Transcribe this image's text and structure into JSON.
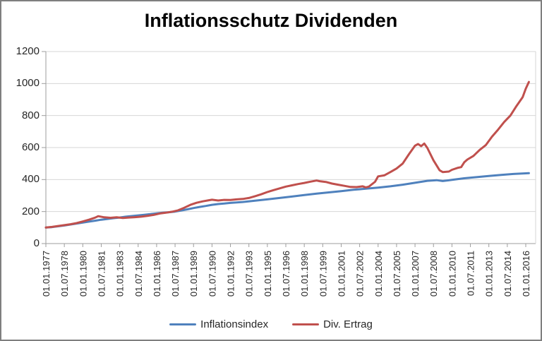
{
  "colors": {
    "background": "#FFFFFF",
    "frame_border": "#7F7F7F",
    "gridline": "#D6D6D6",
    "axis": "#9E9E9E",
    "tick_text": "#262626",
    "title_text": "#000000"
  },
  "chart_data": {
    "type": "line",
    "title": "Inflationsschutz Dividenden",
    "xlabel": "",
    "ylabel": "",
    "ylim": [
      0,
      1200
    ],
    "y_ticks": [
      0,
      200,
      400,
      600,
      800,
      1000,
      1200
    ],
    "grid": true,
    "legend_position": "bottom",
    "x_tick_labels": [
      "01.01.1977",
      "01.07.1978",
      "01.01.1980",
      "01.07.1981",
      "01.01.1983",
      "01.07.1984",
      "01.01.1986",
      "01.07.1987",
      "01.01.1989",
      "01.07.1990",
      "01.01.1992",
      "01.07.1993",
      "01.01.1995",
      "01.07.1996",
      "01.01.1998",
      "01.07.1999",
      "01.01.2001",
      "01.07.2002",
      "01.01.2004",
      "01.07.2005",
      "01.01.2007",
      "01.07.2008",
      "01.01.2010",
      "01.07.2011",
      "01.01.2013",
      "01.07.2014",
      "01.01.2016"
    ],
    "x_tick_interval_months": 18,
    "series": [
      {
        "name": "Inflationsindex",
        "color": "#4F81BD",
        "points": [
          [
            1977,
            100
          ],
          [
            1977.5,
            103
          ],
          [
            1978,
            108
          ],
          [
            1978.5,
            113
          ],
          [
            1979,
            119
          ],
          [
            1979.5,
            125
          ],
          [
            1980,
            131
          ],
          [
            1980.5,
            137
          ],
          [
            1981,
            143
          ],
          [
            1981.5,
            149
          ],
          [
            1982,
            154
          ],
          [
            1982.5,
            159
          ],
          [
            1983,
            163
          ],
          [
            1983.5,
            168
          ],
          [
            1984,
            172
          ],
          [
            1984.5,
            176
          ],
          [
            1985,
            180
          ],
          [
            1985.5,
            184
          ],
          [
            1986,
            189
          ],
          [
            1986.5,
            193
          ],
          [
            1987,
            196
          ],
          [
            1987.5,
            200
          ],
          [
            1988,
            207
          ],
          [
            1988.5,
            214
          ],
          [
            1989,
            222
          ],
          [
            1989.5,
            229
          ],
          [
            1990,
            235
          ],
          [
            1990.5,
            242
          ],
          [
            1991,
            247
          ],
          [
            1991.5,
            250
          ],
          [
            1992,
            254
          ],
          [
            1992.5,
            257
          ],
          [
            1993,
            260
          ],
          [
            1994,
            268
          ],
          [
            1995,
            276
          ],
          [
            1996,
            285
          ],
          [
            1997,
            294
          ],
          [
            1998,
            303
          ],
          [
            1999,
            312
          ],
          [
            2000,
            320
          ],
          [
            2001,
            328
          ],
          [
            2002,
            336
          ],
          [
            2003,
            343
          ],
          [
            2004,
            350
          ],
          [
            2005,
            358
          ],
          [
            2006,
            368
          ],
          [
            2007,
            380
          ],
          [
            2008,
            392
          ],
          [
            2008.75,
            396
          ],
          [
            2009.25,
            391
          ],
          [
            2010,
            398
          ],
          [
            2011,
            408
          ],
          [
            2012,
            415
          ],
          [
            2013,
            422
          ],
          [
            2014,
            429
          ],
          [
            2015,
            435
          ],
          [
            2016,
            439
          ],
          [
            2016.25,
            440
          ]
        ]
      },
      {
        "name": "Div. Ertrag",
        "color": "#C0504D",
        "points": [
          [
            1977,
            100
          ],
          [
            1977.5,
            104
          ],
          [
            1978,
            110
          ],
          [
            1978.5,
            115
          ],
          [
            1979,
            121
          ],
          [
            1979.5,
            128
          ],
          [
            1980,
            138
          ],
          [
            1980.5,
            149
          ],
          [
            1981,
            162
          ],
          [
            1981.25,
            171
          ],
          [
            1981.75,
            164
          ],
          [
            1982.25,
            161
          ],
          [
            1982.75,
            164
          ],
          [
            1983.25,
            160
          ],
          [
            1983.75,
            163
          ],
          [
            1984.25,
            165
          ],
          [
            1984.75,
            168
          ],
          [
            1985.25,
            173
          ],
          [
            1985.75,
            179
          ],
          [
            1986.25,
            188
          ],
          [
            1986.75,
            193
          ],
          [
            1987.25,
            199
          ],
          [
            1987.75,
            208
          ],
          [
            1988.25,
            224
          ],
          [
            1988.75,
            242
          ],
          [
            1989.25,
            255
          ],
          [
            1989.75,
            264
          ],
          [
            1990.25,
            271
          ],
          [
            1990.5,
            274
          ],
          [
            1991,
            269
          ],
          [
            1991.5,
            273
          ],
          [
            1992,
            272
          ],
          [
            1992.5,
            276
          ],
          [
            1993,
            279
          ],
          [
            1993.5,
            285
          ],
          [
            1994,
            296
          ],
          [
            1994.5,
            308
          ],
          [
            1995,
            322
          ],
          [
            1995.5,
            334
          ],
          [
            1996,
            345
          ],
          [
            1996.5,
            356
          ],
          [
            1997,
            364
          ],
          [
            1997.5,
            372
          ],
          [
            1998,
            379
          ],
          [
            1998.5,
            387
          ],
          [
            1999,
            394
          ],
          [
            1999.25,
            390
          ],
          [
            1999.75,
            385
          ],
          [
            2000.25,
            375
          ],
          [
            2000.75,
            368
          ],
          [
            2001.25,
            361
          ],
          [
            2001.75,
            354
          ],
          [
            2002.25,
            353
          ],
          [
            2002.75,
            358
          ],
          [
            2003,
            351
          ],
          [
            2003.25,
            356
          ],
          [
            2003.75,
            386
          ],
          [
            2004,
            420
          ],
          [
            2004.5,
            426
          ],
          [
            2005,
            447
          ],
          [
            2005.5,
            469
          ],
          [
            2006,
            500
          ],
          [
            2006.5,
            558
          ],
          [
            2007,
            612
          ],
          [
            2007.25,
            622
          ],
          [
            2007.5,
            609
          ],
          [
            2007.75,
            625
          ],
          [
            2008,
            598
          ],
          [
            2008.5,
            520
          ],
          [
            2009,
            458
          ],
          [
            2009.25,
            447
          ],
          [
            2009.75,
            450
          ],
          [
            2010,
            461
          ],
          [
            2010.5,
            474
          ],
          [
            2010.75,
            478
          ],
          [
            2011,
            508
          ],
          [
            2011.25,
            525
          ],
          [
            2011.75,
            548
          ],
          [
            2012.25,
            585
          ],
          [
            2012.75,
            615
          ],
          [
            2013.25,
            668
          ],
          [
            2013.75,
            712
          ],
          [
            2014.25,
            760
          ],
          [
            2014.75,
            800
          ],
          [
            2015.25,
            860
          ],
          [
            2015.75,
            915
          ],
          [
            2016,
            968
          ],
          [
            2016.25,
            1010
          ]
        ]
      }
    ]
  }
}
